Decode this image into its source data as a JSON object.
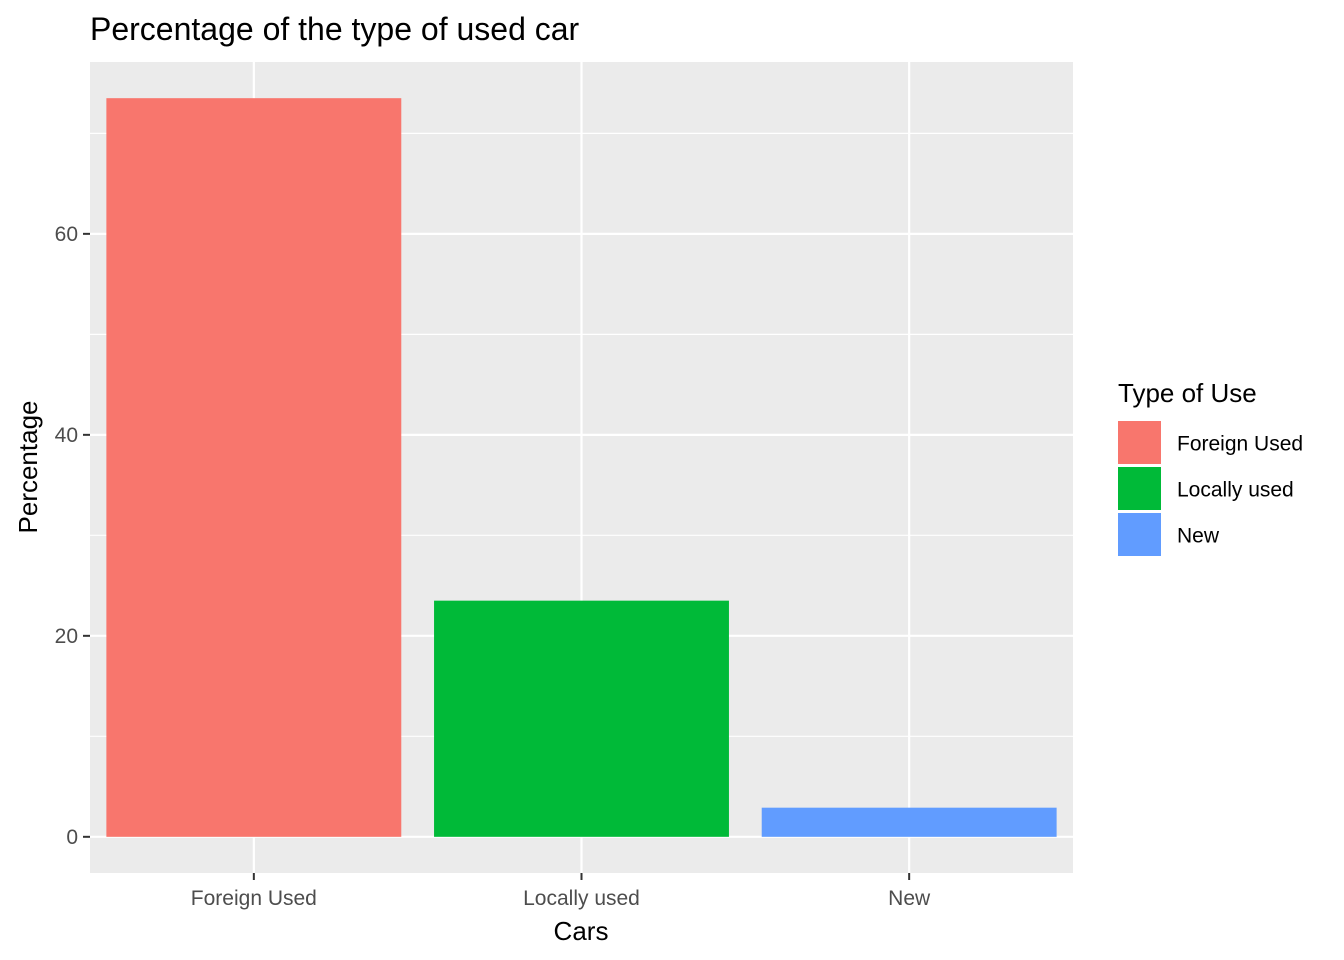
{
  "chart_data": {
    "type": "bar",
    "title": "Percentage of the type of used car",
    "xlabel": "Cars",
    "ylabel": "Percentage",
    "categories": [
      "Foreign Used",
      "Locally used",
      "New"
    ],
    "values": [
      73.5,
      23.5,
      2.9
    ],
    "colors": [
      "#F8766D",
      "#00BA38",
      "#619CFF"
    ],
    "ylim": [
      -3.6,
      77.1
    ],
    "yticks": [
      0,
      20,
      40,
      60
    ],
    "ytick_labels": [
      "0",
      "20",
      "40",
      "60"
    ],
    "grid": true,
    "panel_background": "#EBEBEB",
    "grid_color": "#FFFFFF",
    "legend": {
      "title": "Type of Use",
      "position": "right",
      "entries": [
        "Foreign Used",
        "Locally used",
        "New"
      ]
    }
  }
}
